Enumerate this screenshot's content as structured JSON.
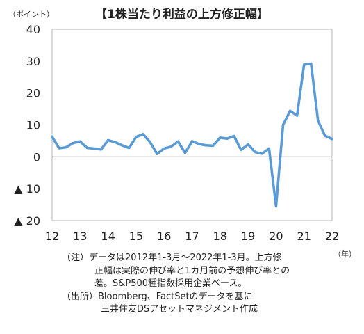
{
  "chart_data": {
    "type": "line",
    "title": "【1株当たり利益の上方修正幅】",
    "ylabel": "（ポイント）",
    "xlabel": "（年）",
    "ylim": [
      -20,
      40
    ],
    "yticks": [
      40,
      30,
      20,
      10,
      0,
      -10,
      -20
    ],
    "ytick_labels": [
      "40",
      "30",
      "20",
      "10",
      "0",
      "▲ 10",
      "▲ 20"
    ],
    "xlim": [
      2012,
      2022
    ],
    "xticks": [
      2012,
      2013,
      2014,
      2015,
      2016,
      2017,
      2018,
      2019,
      2020,
      2021,
      2022
    ],
    "xtick_labels": [
      "12",
      "13",
      "14",
      "15",
      "16",
      "17",
      "18",
      "19",
      "20",
      "21",
      "22"
    ],
    "grid": false,
    "color": "#5b9bd5",
    "x": [
      2012.0,
      2012.25,
      2012.5,
      2012.75,
      2013.0,
      2013.25,
      2013.5,
      2013.75,
      2014.0,
      2014.25,
      2014.5,
      2014.75,
      2015.0,
      2015.25,
      2015.5,
      2015.75,
      2016.0,
      2016.25,
      2016.5,
      2016.75,
      2017.0,
      2017.25,
      2017.5,
      2017.75,
      2018.0,
      2018.25,
      2018.5,
      2018.75,
      2019.0,
      2019.25,
      2019.5,
      2019.75,
      2020.0,
      2020.25,
      2020.5,
      2020.75,
      2021.0,
      2021.25,
      2021.5,
      2021.75,
      2022.0
    ],
    "values": [
      6.3,
      2.7,
      3.0,
      4.3,
      4.8,
      2.8,
      2.6,
      2.3,
      5.2,
      4.6,
      3.6,
      2.8,
      6.2,
      7.1,
      4.6,
      0.9,
      2.6,
      3.2,
      4.8,
      1.2,
      4.9,
      4.0,
      3.6,
      3.5,
      6.0,
      5.7,
      6.5,
      2.2,
      3.9,
      1.5,
      1.0,
      2.6,
      -15.5,
      10.0,
      14.4,
      12.9,
      28.9,
      29.2,
      11.3,
      6.6,
      5.6
    ]
  },
  "notes": {
    "line1": "（注）データは2012年1-3月～2022年1-3月。上方修",
    "line2": "正幅は実際の伸び率と1カ月前の予想伸び率との",
    "line3": "差。S&P500種指数採用企業ベース。",
    "line4": "（出所）Bloomberg、FactSetのデータを基に",
    "line5": "三井住友DSアセットマネジメント作成"
  }
}
